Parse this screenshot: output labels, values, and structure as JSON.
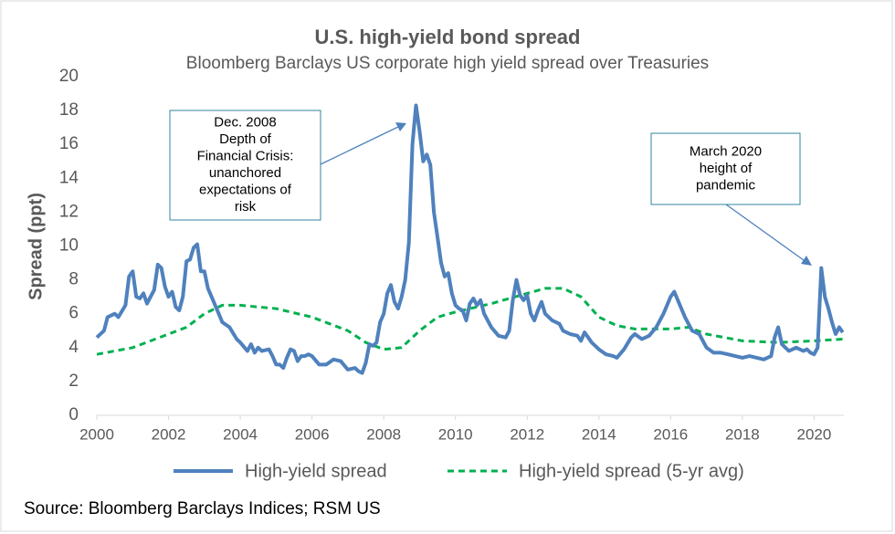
{
  "chart_data": {
    "type": "line",
    "title": "U.S. high-yield bond spread",
    "subtitle": "Bloomberg Barclays US corporate high yield spread over Treasuries",
    "y_label": "Spread (ppt)",
    "source": "Source: Bloomberg Barclays Indices; RSM US",
    "xlim": [
      2000,
      2020.83
    ],
    "xticks": [
      2000,
      2002,
      2004,
      2006,
      2008,
      2010,
      2012,
      2014,
      2016,
      2018,
      2020
    ],
    "ylim": [
      0,
      20
    ],
    "yticks": [
      0,
      2,
      4,
      6,
      8,
      10,
      12,
      14,
      16,
      18,
      20
    ],
    "grid": false,
    "annotations": [
      {
        "lines": [
          "Dec. 2008",
          "Depth of",
          "Financial Crisis:",
          "unanchored",
          "expectations of",
          "risk"
        ]
      },
      {
        "lines": [
          "March 2020",
          "height of",
          "pandemic"
        ]
      }
    ],
    "series": [
      {
        "name": "High-yield spread",
        "color": "#4f81bd",
        "dash": false,
        "x": [
          2000.0,
          2000.2,
          2000.3,
          2000.5,
          2000.6,
          2000.8,
          2000.9,
          2001.0,
          2001.1,
          2001.2,
          2001.3,
          2001.4,
          2001.5,
          2001.6,
          2001.7,
          2001.8,
          2001.9,
          2002.0,
          2002.1,
          2002.2,
          2002.3,
          2002.4,
          2002.5,
          2002.6,
          2002.7,
          2002.8,
          2002.9,
          2003.0,
          2003.1,
          2003.3,
          2003.5,
          2003.7,
          2003.9,
          2004.0,
          2004.2,
          2004.3,
          2004.4,
          2004.5,
          2004.6,
          2004.8,
          2004.9,
          2005.0,
          2005.1,
          2005.2,
          2005.3,
          2005.4,
          2005.5,
          2005.6,
          2005.7,
          2005.8,
          2005.9,
          2006.0,
          2006.2,
          2006.4,
          2006.6,
          2006.8,
          2007.0,
          2007.2,
          2007.3,
          2007.4,
          2007.5,
          2007.6,
          2007.7,
          2007.8,
          2007.9,
          2008.0,
          2008.1,
          2008.2,
          2008.3,
          2008.4,
          2008.5,
          2008.6,
          2008.7,
          2008.8,
          2008.9,
          2009.0,
          2009.1,
          2009.2,
          2009.3,
          2009.4,
          2009.5,
          2009.6,
          2009.7,
          2009.8,
          2009.9,
          2010.0,
          2010.1,
          2010.2,
          2010.3,
          2010.4,
          2010.5,
          2010.6,
          2010.7,
          2010.8,
          2010.9,
          2011.0,
          2011.2,
          2011.4,
          2011.5,
          2011.6,
          2011.7,
          2011.8,
          2011.9,
          2012.0,
          2012.1,
          2012.2,
          2012.3,
          2012.4,
          2012.5,
          2012.7,
          2012.9,
          2013.0,
          2013.2,
          2013.4,
          2013.5,
          2013.6,
          2013.8,
          2014.0,
          2014.2,
          2014.4,
          2014.5,
          2014.7,
          2014.9,
          2015.0,
          2015.2,
          2015.4,
          2015.6,
          2015.8,
          2015.9,
          2016.0,
          2016.1,
          2016.2,
          2016.4,
          2016.6,
          2016.8,
          2017.0,
          2017.2,
          2017.4,
          2017.6,
          2017.8,
          2018.0,
          2018.2,
          2018.4,
          2018.6,
          2018.8,
          2018.9,
          2019.0,
          2019.1,
          2019.3,
          2019.5,
          2019.7,
          2019.8,
          2019.9,
          2020.0,
          2020.1,
          2020.2,
          2020.3,
          2020.4,
          2020.5,
          2020.6,
          2020.7,
          2020.8
        ],
        "values": [
          4.6,
          5.0,
          5.8,
          6.0,
          5.8,
          6.5,
          8.2,
          8.5,
          7.0,
          6.9,
          7.2,
          6.6,
          7.0,
          7.4,
          8.9,
          8.7,
          7.6,
          7.0,
          7.3,
          6.4,
          6.2,
          7.0,
          9.1,
          9.2,
          9.9,
          10.1,
          8.5,
          8.5,
          7.5,
          6.5,
          5.5,
          5.2,
          4.5,
          4.3,
          3.8,
          4.2,
          3.7,
          4.0,
          3.8,
          3.9,
          3.5,
          3.0,
          3.0,
          2.8,
          3.4,
          3.9,
          3.8,
          3.2,
          3.5,
          3.5,
          3.6,
          3.5,
          3.0,
          3.0,
          3.3,
          3.2,
          2.7,
          2.8,
          2.6,
          2.5,
          3.1,
          4.2,
          4.1,
          4.3,
          5.5,
          6.0,
          7.2,
          7.7,
          6.7,
          6.3,
          7.0,
          8.0,
          10.2,
          16.0,
          18.3,
          16.8,
          15.0,
          15.4,
          14.8,
          12.0,
          10.5,
          9.0,
          8.2,
          8.4,
          7.2,
          6.5,
          6.3,
          6.2,
          5.6,
          6.6,
          6.9,
          6.5,
          6.8,
          6.0,
          5.6,
          5.2,
          4.7,
          4.6,
          5.0,
          6.8,
          8.0,
          7.1,
          6.8,
          7.1,
          6.0,
          5.6,
          6.2,
          6.7,
          6.0,
          5.6,
          5.4,
          5.0,
          4.8,
          4.7,
          4.4,
          4.9,
          4.3,
          3.9,
          3.6,
          3.5,
          3.4,
          3.9,
          4.6,
          4.8,
          4.5,
          4.7,
          5.2,
          6.0,
          6.5,
          7.0,
          7.3,
          6.8,
          5.8,
          5.0,
          4.8,
          4.0,
          3.7,
          3.7,
          3.6,
          3.5,
          3.4,
          3.5,
          3.4,
          3.3,
          3.5,
          4.6,
          5.2,
          4.2,
          3.8,
          4.0,
          3.8,
          3.9,
          3.7,
          3.6,
          4.0,
          8.7,
          7.0,
          6.3,
          5.5,
          4.8,
          5.2,
          4.9
        ]
      },
      {
        "name": "High-yield spread (5-yr avg)",
        "color": "#00b050",
        "dash": true,
        "x": [
          2000,
          2001,
          2002,
          2002.5,
          2003,
          2003.5,
          2004,
          2005,
          2006,
          2007,
          2007.5,
          2008,
          2008.5,
          2009,
          2009.5,
          2010,
          2011,
          2012,
          2012.5,
          2013,
          2013.5,
          2014,
          2014.5,
          2015,
          2016,
          2016.5,
          2017,
          2018,
          2019,
          2020,
          2020.8
        ],
        "values": [
          3.6,
          4.0,
          4.8,
          5.2,
          6.0,
          6.5,
          6.5,
          6.3,
          5.8,
          5.0,
          4.3,
          3.9,
          4.0,
          5.0,
          5.8,
          6.1,
          6.6,
          7.2,
          7.5,
          7.5,
          7.0,
          5.8,
          5.3,
          5.1,
          5.1,
          5.2,
          4.8,
          4.4,
          4.3,
          4.4,
          4.5
        ]
      }
    ]
  }
}
